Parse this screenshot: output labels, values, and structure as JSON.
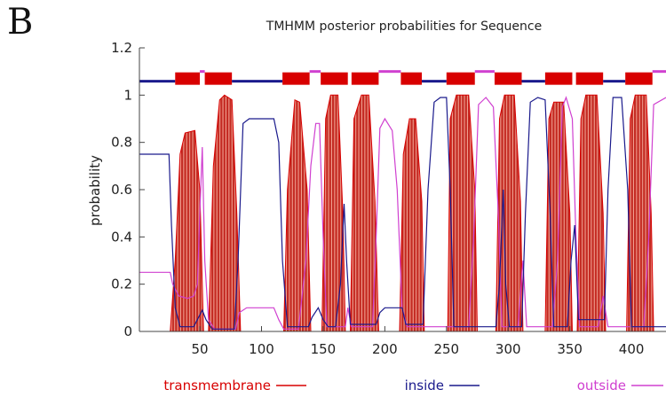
{
  "panel_label": "B",
  "chart_data": {
    "type": "area",
    "title": "TMHMM posterior probabilities for Sequence",
    "xlabel": "",
    "ylabel": "probability",
    "xlim": [
      1,
      428
    ],
    "ylim": [
      0,
      1.2
    ],
    "x_ticks": [
      "50",
      "100",
      "150",
      "200",
      "250",
      "300",
      "350",
      "400"
    ],
    "y_ticks": [
      "0",
      "0.2",
      "0.4",
      "0.6",
      "0.8",
      "1",
      "1.2"
    ],
    "colors": {
      "transmembrane": "#d80000",
      "inside": "#1a1a8c",
      "outside": "#d040d0"
    },
    "series": [
      {
        "name": "transmembrane",
        "points": [
          [
            1,
            0
          ],
          [
            26,
            0
          ],
          [
            30,
            0.3
          ],
          [
            34,
            0.75
          ],
          [
            38,
            0.84
          ],
          [
            46,
            0.85
          ],
          [
            50,
            0.6
          ],
          [
            53,
            0
          ],
          [
            57,
            0
          ],
          [
            61,
            0.7
          ],
          [
            66,
            0.98
          ],
          [
            70,
            1.0
          ],
          [
            76,
            0.98
          ],
          [
            80,
            0.5
          ],
          [
            83,
            0
          ],
          [
            118,
            0
          ],
          [
            121,
            0.6
          ],
          [
            127,
            0.98
          ],
          [
            131,
            0.97
          ],
          [
            137,
            0.6
          ],
          [
            140,
            0
          ],
          [
            149,
            0
          ],
          [
            152,
            0.9
          ],
          [
            156,
            1.0
          ],
          [
            162,
            1.0
          ],
          [
            166,
            0.5
          ],
          [
            168,
            0
          ],
          [
            172,
            0
          ],
          [
            175,
            0.9
          ],
          [
            181,
            1.0
          ],
          [
            187,
            1.0
          ],
          [
            192,
            0.55
          ],
          [
            195,
            0
          ],
          [
            212,
            0
          ],
          [
            215,
            0.75
          ],
          [
            220,
            0.9
          ],
          [
            225,
            0.9
          ],
          [
            230,
            0.55
          ],
          [
            232,
            0
          ],
          [
            251,
            0
          ],
          [
            253,
            0.9
          ],
          [
            258,
            1.0
          ],
          [
            268,
            1.0
          ],
          [
            273,
            0.6
          ],
          [
            275,
            0
          ],
          [
            290,
            0
          ],
          [
            293,
            0.9
          ],
          [
            297,
            1.0
          ],
          [
            305,
            1.0
          ],
          [
            310,
            0.55
          ],
          [
            312,
            0
          ],
          [
            330,
            0
          ],
          [
            333,
            0.9
          ],
          [
            337,
            0.97
          ],
          [
            345,
            0.97
          ],
          [
            350,
            0.5
          ],
          [
            352,
            0
          ],
          [
            356,
            0
          ],
          [
            359,
            0.9
          ],
          [
            363,
            1.0
          ],
          [
            372,
            1.0
          ],
          [
            377,
            0.5
          ],
          [
            379,
            0
          ],
          [
            396,
            0
          ],
          [
            399,
            0.9
          ],
          [
            403,
            1.0
          ],
          [
            412,
            1.0
          ],
          [
            416,
            0.5
          ],
          [
            418,
            0
          ],
          [
            428,
            0
          ]
        ]
      },
      {
        "name": "inside",
        "points": [
          [
            1,
            0.75
          ],
          [
            25,
            0.75
          ],
          [
            27,
            0.45
          ],
          [
            30,
            0.1
          ],
          [
            34,
            0.02
          ],
          [
            45,
            0.02
          ],
          [
            48,
            0.05
          ],
          [
            52,
            0.09
          ],
          [
            55,
            0.05
          ],
          [
            60,
            0.01
          ],
          [
            78,
            0.01
          ],
          [
            81,
            0.3
          ],
          [
            85,
            0.88
          ],
          [
            90,
            0.9
          ],
          [
            110,
            0.9
          ],
          [
            114,
            0.8
          ],
          [
            117,
            0.3
          ],
          [
            121,
            0.02
          ],
          [
            138,
            0.02
          ],
          [
            141,
            0.06
          ],
          [
            146,
            0.1
          ],
          [
            150,
            0.05
          ],
          [
            154,
            0.02
          ],
          [
            160,
            0.02
          ],
          [
            164,
            0.2
          ],
          [
            167,
            0.54
          ],
          [
            169,
            0.3
          ],
          [
            172,
            0.03
          ],
          [
            193,
            0.03
          ],
          [
            196,
            0.08
          ],
          [
            200,
            0.1
          ],
          [
            214,
            0.1
          ],
          [
            217,
            0.03
          ],
          [
            231,
            0.03
          ],
          [
            235,
            0.6
          ],
          [
            240,
            0.97
          ],
          [
            245,
            0.99
          ],
          [
            250,
            0.99
          ],
          [
            253,
            0.6
          ],
          [
            256,
            0.02
          ],
          [
            290,
            0.02
          ],
          [
            293,
            0.2
          ],
          [
            296,
            0.6
          ],
          [
            298,
            0.2
          ],
          [
            301,
            0.02
          ],
          [
            311,
            0.02
          ],
          [
            314,
            0.5
          ],
          [
            318,
            0.97
          ],
          [
            324,
            0.99
          ],
          [
            330,
            0.98
          ],
          [
            334,
            0.5
          ],
          [
            337,
            0.02
          ],
          [
            348,
            0.02
          ],
          [
            351,
            0.3
          ],
          [
            354,
            0.45
          ],
          [
            357,
            0.05
          ],
          [
            378,
            0.05
          ],
          [
            381,
            0.6
          ],
          [
            385,
            0.99
          ],
          [
            392,
            0.99
          ],
          [
            397,
            0.6
          ],
          [
            400,
            0.02
          ],
          [
            428,
            0.02
          ]
        ]
      },
      {
        "name": "outside",
        "points": [
          [
            1,
            0.25
          ],
          [
            26,
            0.25
          ],
          [
            28,
            0.2
          ],
          [
            33,
            0.15
          ],
          [
            40,
            0.14
          ],
          [
            45,
            0.15
          ],
          [
            48,
            0.2
          ],
          [
            50,
            0.5
          ],
          [
            52,
            0.78
          ],
          [
            54,
            0.3
          ],
          [
            57,
            0.05
          ],
          [
            62,
            0.01
          ],
          [
            79,
            0.01
          ],
          [
            82,
            0.08
          ],
          [
            88,
            0.1
          ],
          [
            110,
            0.1
          ],
          [
            114,
            0.05
          ],
          [
            118,
            0.01
          ],
          [
            130,
            0.01
          ],
          [
            136,
            0.3
          ],
          [
            140,
            0.7
          ],
          [
            144,
            0.88
          ],
          [
            147,
            0.88
          ],
          [
            150,
            0.4
          ],
          [
            153,
            0.02
          ],
          [
            168,
            0.02
          ],
          [
            170,
            0.1
          ],
          [
            173,
            0.02
          ],
          [
            190,
            0.02
          ],
          [
            193,
            0.4
          ],
          [
            196,
            0.86
          ],
          [
            200,
            0.9
          ],
          [
            206,
            0.85
          ],
          [
            210,
            0.6
          ],
          [
            214,
            0.1
          ],
          [
            218,
            0.02
          ],
          [
            268,
            0.02
          ],
          [
            272,
            0.4
          ],
          [
            276,
            0.96
          ],
          [
            282,
            0.99
          ],
          [
            288,
            0.95
          ],
          [
            292,
            0.5
          ],
          [
            295,
            0.02
          ],
          [
            308,
            0.02
          ],
          [
            312,
            0.3
          ],
          [
            315,
            0.02
          ],
          [
            336,
            0.02
          ],
          [
            340,
            0.3
          ],
          [
            344,
            0.95
          ],
          [
            347,
            0.99
          ],
          [
            352,
            0.9
          ],
          [
            355,
            0.4
          ],
          [
            358,
            0.02
          ],
          [
            373,
            0.02
          ],
          [
            377,
            0.15
          ],
          [
            381,
            0.02
          ],
          [
            410,
            0.02
          ],
          [
            414,
            0.4
          ],
          [
            418,
            0.96
          ],
          [
            428,
            0.99
          ]
        ]
      }
    ],
    "topology_bar": [
      {
        "type": "inside",
        "start": 1,
        "end": 30
      },
      {
        "type": "transmembrane",
        "start": 30,
        "end": 50
      },
      {
        "type": "outside",
        "start": 50,
        "end": 54
      },
      {
        "type": "transmembrane",
        "start": 54,
        "end": 76
      },
      {
        "type": "inside",
        "start": 76,
        "end": 117
      },
      {
        "type": "transmembrane",
        "start": 117,
        "end": 139
      },
      {
        "type": "outside",
        "start": 139,
        "end": 148
      },
      {
        "type": "transmembrane",
        "start": 148,
        "end": 170
      },
      {
        "type": "transmembrane",
        "start": 173,
        "end": 195
      },
      {
        "type": "outside",
        "start": 195,
        "end": 213
      },
      {
        "type": "transmembrane",
        "start": 213,
        "end": 230
      },
      {
        "type": "inside",
        "start": 230,
        "end": 250
      },
      {
        "type": "transmembrane",
        "start": 250,
        "end": 273
      },
      {
        "type": "outside",
        "start": 273,
        "end": 289
      },
      {
        "type": "transmembrane",
        "start": 289,
        "end": 311
      },
      {
        "type": "inside",
        "start": 311,
        "end": 330
      },
      {
        "type": "transmembrane",
        "start": 330,
        "end": 352
      },
      {
        "type": "transmembrane",
        "start": 355,
        "end": 377
      },
      {
        "type": "inside",
        "start": 377,
        "end": 395
      },
      {
        "type": "transmembrane",
        "start": 395,
        "end": 417
      },
      {
        "type": "outside",
        "start": 417,
        "end": 428
      }
    ],
    "legend": {
      "placement": "bottom",
      "entries": [
        {
          "label": "transmembrane",
          "series": "transmembrane"
        },
        {
          "label": "inside",
          "series": "inside"
        },
        {
          "label": "outside",
          "series": "outside"
        }
      ]
    }
  }
}
